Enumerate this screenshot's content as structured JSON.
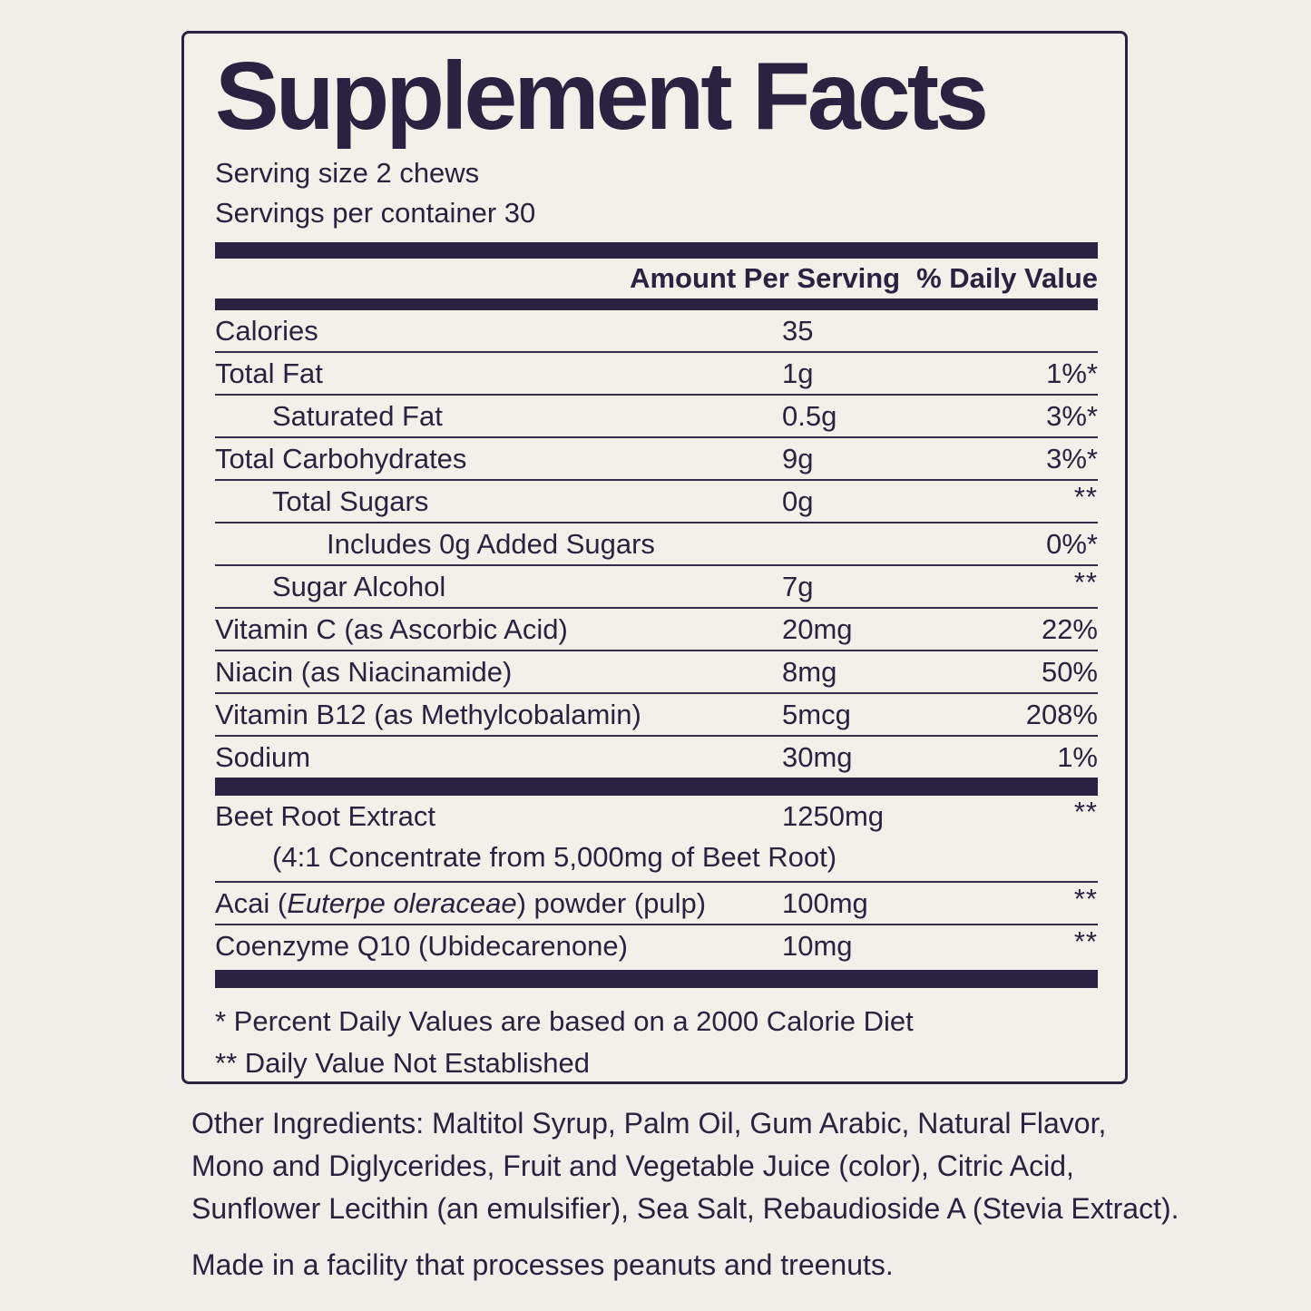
{
  "colors": {
    "ink": "#2b2140",
    "background": "#efeee8",
    "panel_background": "#f2f0e9"
  },
  "title": "Supplement Facts",
  "serving": {
    "size_line": "Serving size 2 chews",
    "per_container_line": "Servings per container 30"
  },
  "column_header": {
    "amount_label": "Amount Per Serving",
    "dv_label": "% Daily Value"
  },
  "nutrients": [
    {
      "name": "Calories",
      "amount": "35",
      "dv": "",
      "indent": 0
    },
    {
      "name": "Total Fat",
      "amount": "1g",
      "dv": "1%*",
      "indent": 0
    },
    {
      "name": "Saturated Fat",
      "amount": "0.5g",
      "dv": "3%*",
      "indent": 1
    },
    {
      "name": "Total Carbohydrates",
      "amount": "9g",
      "dv": "3%*",
      "indent": 0
    },
    {
      "name": "Total Sugars",
      "amount": "0g",
      "dv": "**",
      "indent": 1
    },
    {
      "name": "Includes 0g Added Sugars",
      "amount": "",
      "dv": "0%*",
      "indent": 2
    },
    {
      "name": "Sugar Alcohol",
      "amount": "7g",
      "dv": "**",
      "indent": 1
    },
    {
      "name": "Vitamin C (as Ascorbic Acid)",
      "amount": "20mg",
      "dv": "22%",
      "indent": 0
    },
    {
      "name": "Niacin (as Niacinamide)",
      "amount": "8mg",
      "dv": "50%",
      "indent": 0
    },
    {
      "name": "Vitamin B12 (as Methylcobalamin)",
      "amount": "5mcg",
      "dv": "208%",
      "indent": 0
    },
    {
      "name": "Sodium",
      "amount": "30mg",
      "dv": "1%",
      "indent": 0
    }
  ],
  "botanicals": [
    {
      "name": "Beet Root Extract",
      "amount": "1250mg",
      "dv": "**",
      "indent": 0,
      "subline": "(4:1 Concentrate from 5,000mg of Beet Root)"
    },
    {
      "name": "Acai (",
      "name_italic": "Euterpe oleraceae",
      "name_suffix": ") powder (pulp)",
      "amount": "100mg",
      "dv": "**",
      "indent": 0
    },
    {
      "name": "Coenzyme Q10 (Ubidecarenone)",
      "amount": "10mg",
      "dv": "**",
      "indent": 0
    }
  ],
  "footnotes": [
    "* Percent Daily Values are based on a 2000 Calorie Diet",
    "** Daily Value Not Established"
  ],
  "other_ingredients_lines": [
    "Other Ingredients: Maltitol Syrup, Palm Oil, Gum Arabic, Natural Flavor,",
    "Mono and Diglycerides, Fruit and Vegetable Juice (color), Citric Acid,",
    "Sunflower Lecithin (an emulsifier), Sea Salt, Rebaudioside A (Stevia Extract)."
  ],
  "allergen_note": "Made in a facility that processes peanuts and treenuts."
}
